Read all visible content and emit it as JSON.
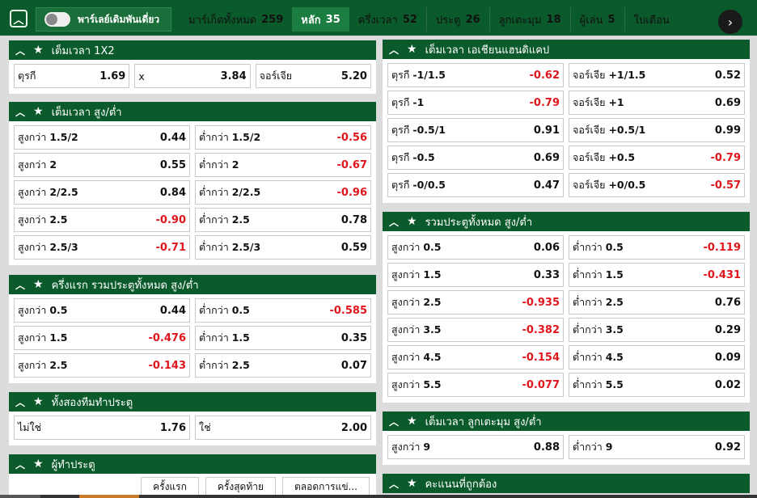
{
  "topbar": {
    "parlay_label": "พาร์เลย์เดิมพันเดี่ยว",
    "tabs": [
      {
        "label": "มาร์เก็ตทั้งหมด",
        "count": "259"
      },
      {
        "label": "หลัก",
        "count": "35"
      },
      {
        "label": "ครึ่งเวลา",
        "count": "52"
      },
      {
        "label": "ประตู",
        "count": "26"
      },
      {
        "label": "ลูกเตะมุม",
        "count": "18"
      },
      {
        "label": "ผู้เล่น",
        "count": "5"
      },
      {
        "label": "ใบเตือน",
        "count": ""
      }
    ]
  },
  "left": {
    "p1": {
      "title": "เต็มเวลา 1X2",
      "rows": [
        [
          {
            "label": "ตุรกี",
            "odd": "1.69"
          },
          {
            "label": "x",
            "odd": "3.84"
          },
          {
            "label": "จอร์เจีย",
            "odd": "5.20"
          }
        ]
      ]
    },
    "p2": {
      "title": "เต็มเวลา สูง/ต่ำ",
      "rows": [
        [
          {
            "label": "สูงกว่า",
            "line": "1.5/2",
            "odd": "0.44"
          },
          {
            "label": "ต่ำกว่า",
            "line": "1.5/2",
            "odd": "-0.56"
          }
        ],
        [
          {
            "label": "สูงกว่า",
            "line": "2",
            "odd": "0.55"
          },
          {
            "label": "ต่ำกว่า",
            "line": "2",
            "odd": "-0.67"
          }
        ],
        [
          {
            "label": "สูงกว่า",
            "line": "2/2.5",
            "odd": "0.84"
          },
          {
            "label": "ต่ำกว่า",
            "line": "2/2.5",
            "odd": "-0.96"
          }
        ],
        [
          {
            "label": "สูงกว่า",
            "line": "2.5",
            "odd": "-0.90"
          },
          {
            "label": "ต่ำกว่า",
            "line": "2.5",
            "odd": "0.78"
          }
        ],
        [
          {
            "label": "สูงกว่า",
            "line": "2.5/3",
            "odd": "-0.71"
          },
          {
            "label": "ต่ำกว่า",
            "line": "2.5/3",
            "odd": "0.59"
          }
        ]
      ]
    },
    "p3": {
      "title": "ครึ่งแรก รวมประตูทั้งหมด สูง/ต่ำ",
      "rows": [
        [
          {
            "label": "สูงกว่า",
            "line": "0.5",
            "odd": "0.44"
          },
          {
            "label": "ต่ำกว่า",
            "line": "0.5",
            "odd": "-0.585"
          }
        ],
        [
          {
            "label": "สูงกว่า",
            "line": "1.5",
            "odd": "-0.476"
          },
          {
            "label": "ต่ำกว่า",
            "line": "1.5",
            "odd": "0.35"
          }
        ],
        [
          {
            "label": "สูงกว่า",
            "line": "2.5",
            "odd": "-0.143"
          },
          {
            "label": "ต่ำกว่า",
            "line": "2.5",
            "odd": "0.07"
          }
        ]
      ]
    },
    "p4": {
      "title": "ทั้งสองทีมทำประตู",
      "rows": [
        [
          {
            "label": "ไม่ใช่",
            "line": "",
            "odd": "1.76"
          },
          {
            "label": "ใช่",
            "line": "",
            "odd": "2.00"
          }
        ]
      ]
    },
    "p5": {
      "title": "ผู้ทำประตู",
      "subtabs": [
        "ครั้งแรก",
        "ครั้งสุดท้าย",
        "ตลอดการแข่..."
      ]
    }
  },
  "right": {
    "p1": {
      "title": "เต็มเวลา เอเชียนแฮนดิแคป",
      "rows": [
        [
          {
            "label": "ตุรกี",
            "line": "-1/1.5",
            "odd": "-0.62"
          },
          {
            "label": "จอร์เจีย",
            "line": "+1/1.5",
            "odd": "0.52"
          }
        ],
        [
          {
            "label": "ตุรกี",
            "line": "-1",
            "odd": "-0.79"
          },
          {
            "label": "จอร์เจีย",
            "line": "+1",
            "odd": "0.69"
          }
        ],
        [
          {
            "label": "ตุรกี",
            "line": "-0.5/1",
            "odd": "0.91"
          },
          {
            "label": "จอร์เจีย",
            "line": "+0.5/1",
            "odd": "0.99"
          }
        ],
        [
          {
            "label": "ตุรกี",
            "line": "-0.5",
            "odd": "0.69"
          },
          {
            "label": "จอร์เจีย",
            "line": "+0.5",
            "odd": "-0.79"
          }
        ],
        [
          {
            "label": "ตุรกี",
            "line": "-0/0.5",
            "odd": "0.47"
          },
          {
            "label": "จอร์เจีย",
            "line": "+0/0.5",
            "odd": "-0.57"
          }
        ]
      ]
    },
    "p2": {
      "title": "รวมประตูทั้งหมด สูง/ต่ำ",
      "rows": [
        [
          {
            "label": "สูงกว่า",
            "line": "0.5",
            "odd": "0.06"
          },
          {
            "label": "ต่ำกว่า",
            "line": "0.5",
            "odd": "-0.119"
          }
        ],
        [
          {
            "label": "สูงกว่า",
            "line": "1.5",
            "odd": "0.33"
          },
          {
            "label": "ต่ำกว่า",
            "line": "1.5",
            "odd": "-0.431"
          }
        ],
        [
          {
            "label": "สูงกว่า",
            "line": "2.5",
            "odd": "-0.935"
          },
          {
            "label": "ต่ำกว่า",
            "line": "2.5",
            "odd": "0.76"
          }
        ],
        [
          {
            "label": "สูงกว่า",
            "line": "3.5",
            "odd": "-0.382"
          },
          {
            "label": "ต่ำกว่า",
            "line": "3.5",
            "odd": "0.29"
          }
        ],
        [
          {
            "label": "สูงกว่า",
            "line": "4.5",
            "odd": "-0.154"
          },
          {
            "label": "ต่ำกว่า",
            "line": "4.5",
            "odd": "0.09"
          }
        ],
        [
          {
            "label": "สูงกว่า",
            "line": "5.5",
            "odd": "-0.077"
          },
          {
            "label": "ต่ำกว่า",
            "line": "5.5",
            "odd": "0.02"
          }
        ]
      ]
    },
    "p3": {
      "title": "เต็มเวลา ลูกเตะมุม สูง/ต่ำ",
      "rows": [
        [
          {
            "label": "สูงกว่า",
            "line": "9",
            "odd": "0.88"
          },
          {
            "label": "ต่ำกว่า",
            "line": "9",
            "odd": "0.92"
          }
        ]
      ]
    },
    "p4": {
      "title": "คะแนนที่ถูกต้อง"
    }
  }
}
